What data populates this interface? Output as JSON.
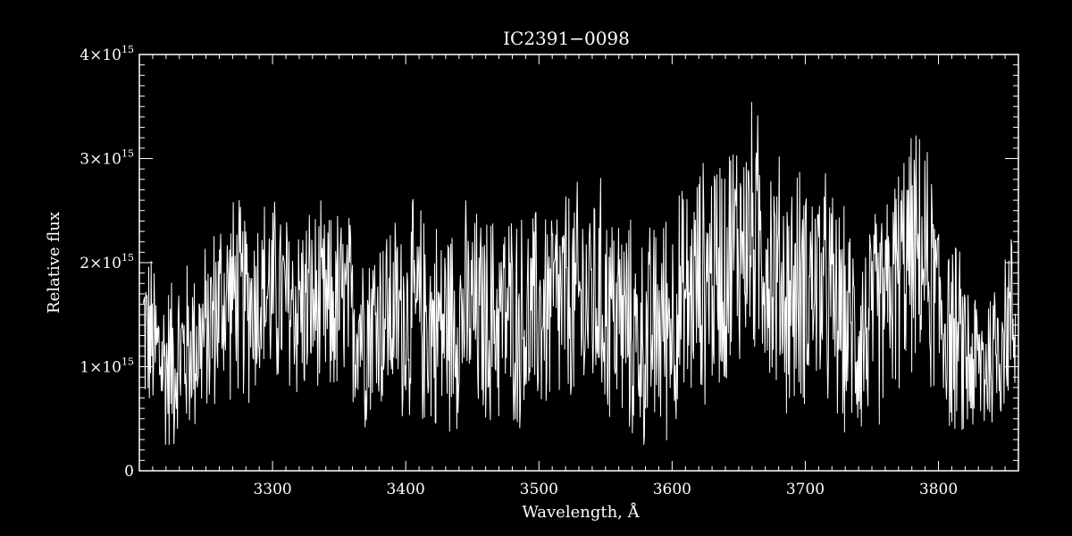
{
  "chart_data": {
    "type": "line",
    "title": "IC2391−0098",
    "xlabel": "Wavelength, Å",
    "ylabel": "Relative flux",
    "xlim": [
      3200,
      3860
    ],
    "ylim": [
      0,
      4000000000000000.0
    ],
    "x_ticks": [
      {
        "value": 3300,
        "label": "3300"
      },
      {
        "value": 3400,
        "label": "3400"
      },
      {
        "value": 3500,
        "label": "3500"
      },
      {
        "value": 3600,
        "label": "3600"
      },
      {
        "value": 3700,
        "label": "3700"
      },
      {
        "value": 3800,
        "label": "3800"
      }
    ],
    "y_ticks": [
      {
        "value": 0,
        "mantissa": "0",
        "exponent": ""
      },
      {
        "value": 1000000000000000.0,
        "mantissa": "1×10",
        "exponent": "15"
      },
      {
        "value": 2000000000000000.0,
        "mantissa": "2×10",
        "exponent": "15"
      },
      {
        "value": 3000000000000000.0,
        "mantissa": "3×10",
        "exponent": "15"
      },
      {
        "value": 4000000000000000.0,
        "mantissa": "4×10",
        "exponent": "15"
      }
    ],
    "grid": false,
    "colors": {
      "background": "#000000",
      "line": "#ffffff",
      "axes": "#ffffff"
    },
    "series": [
      {
        "x": [
          3200,
          3210,
          3220,
          3230,
          3240,
          3250,
          3260,
          3270,
          3280,
          3290,
          3300,
          3310,
          3320,
          3330,
          3340,
          3350,
          3360,
          3370,
          3380,
          3390,
          3400,
          3410,
          3420,
          3430,
          3440,
          3450,
          3460,
          3470,
          3480,
          3490,
          3500,
          3510,
          3520,
          3530,
          3540,
          3550,
          3560,
          3570,
          3580,
          3590,
          3600,
          3610,
          3620,
          3630,
          3640,
          3650,
          3660,
          3670,
          3680,
          3690,
          3700,
          3710,
          3720,
          3730,
          3740,
          3750,
          3760,
          3770,
          3780,
          3790,
          3800,
          3810,
          3820,
          3830,
          3840,
          3850,
          3860
        ],
        "y": [
          1500000000000000.0,
          1200000000000000.0,
          1000000000000000.0,
          1100000000000000.0,
          1200000000000000.0,
          1300000000000000.0,
          1600000000000000.0,
          1700000000000000.0,
          1600000000000000.0,
          1700000000000000.0,
          1700000000000000.0,
          1600000000000000.0,
          1600000000000000.0,
          1600000000000000.0,
          1500000000000000.0,
          1600000000000000.0,
          1500000000000000.0,
          1400000000000000.0,
          1500000000000000.0,
          1500000000000000.0,
          1500000000000000.0,
          1500000000000000.0,
          1400000000000000.0,
          1400000000000000.0,
          1500000000000000.0,
          1500000000000000.0,
          1400000000000000.0,
          1500000000000000.0,
          1500000000000000.0,
          1400000000000000.0,
          1500000000000000.0,
          1600000000000000.0,
          1600000000000000.0,
          1600000000000000.0,
          1700000000000000.0,
          1600000000000000.0,
          1500000000000000.0,
          1300000000000000.0,
          1200000000000000.0,
          1400000000000000.0,
          1500000000000000.0,
          1600000000000000.0,
          1800000000000000.0,
          1900000000000000.0,
          2000000000000000.0,
          2200000000000000.0,
          2300000000000000.0,
          2100000000000000.0,
          1800000000000000.0,
          1700000000000000.0,
          1800000000000000.0,
          1800000000000000.0,
          1600000000000000.0,
          1400000000000000.0,
          1300000000000000.0,
          1400000000000000.0,
          1600000000000000.0,
          1900000000000000.0,
          2100000000000000.0,
          2000000000000000.0,
          1600000000000000.0,
          1300000000000000.0,
          1100000000000000.0,
          1000000000000000.0,
          1100000000000000.0,
          1400000000000000.0,
          1500000000000000.0
        ],
        "noise": [
          900000000000000.0,
          1000000000000000.0,
          1000000000000000.0,
          1000000000000000.0,
          1000000000000000.0,
          1000000000000000.0,
          1100000000000000.0,
          1100000000000000.0,
          1100000000000000.0,
          1100000000000000.0,
          1100000000000000.0,
          1100000000000000.0,
          1100000000000000.0,
          1100000000000000.0,
          1100000000000000.0,
          1100000000000000.0,
          1100000000000000.0,
          1100000000000000.0,
          1100000000000000.0,
          1100000000000000.0,
          1200000000000000.0,
          1200000000000000.0,
          1200000000000000.0,
          1200000000000000.0,
          1200000000000000.0,
          1200000000000000.0,
          1200000000000000.0,
          1200000000000000.0,
          1200000000000000.0,
          1200000000000000.0,
          1200000000000000.0,
          1300000000000000.0,
          1300000000000000.0,
          1300000000000000.0,
          1300000000000000.0,
          1300000000000000.0,
          1300000000000000.0,
          1200000000000000.0,
          1200000000000000.0,
          1300000000000000.0,
          1300000000000000.0,
          1300000000000000.0,
          1300000000000000.0,
          1400000000000000.0,
          1400000000000000.0,
          1400000000000000.0,
          1400000000000000.0,
          1400000000000000.0,
          1400000000000000.0,
          1400000000000000.0,
          1300000000000000.0,
          1300000000000000.0,
          1300000000000000.0,
          1200000000000000.0,
          1200000000000000.0,
          1200000000000000.0,
          1200000000000000.0,
          1300000000000000.0,
          1300000000000000.0,
          1300000000000000.0,
          1200000000000000.0,
          1100000000000000.0,
          1000000000000000.0,
          900000000000000.0,
          900000000000000.0,
          1000000000000000.0,
          1000000000000000.0
        ]
      }
    ]
  }
}
